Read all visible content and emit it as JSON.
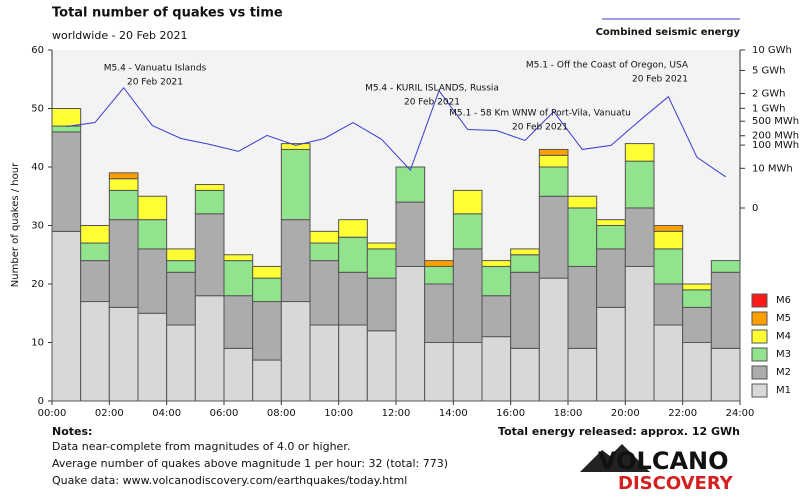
{
  "chart_data": {
    "type": "bar",
    "stacked": true,
    "title": "Total number of quakes vs time",
    "subtitle": "worldwide - 20 Feb 2021",
    "y_label": "Number of quakes / hour",
    "x": [
      0,
      1,
      2,
      3,
      4,
      5,
      6,
      7,
      8,
      9,
      10,
      11,
      12,
      13,
      14,
      15,
      16,
      17,
      18,
      19,
      20,
      21,
      22,
      23
    ],
    "xlim": [
      0,
      24
    ],
    "xticks": [
      {
        "value": 0,
        "label": "00:00"
      },
      {
        "value": 2,
        "label": "02:00"
      },
      {
        "value": 4,
        "label": "04:00"
      },
      {
        "value": 6,
        "label": "06:00"
      },
      {
        "value": 8,
        "label": "08:00"
      },
      {
        "value": 10,
        "label": "10:00"
      },
      {
        "value": 12,
        "label": "12:00"
      },
      {
        "value": 14,
        "label": "14:00"
      },
      {
        "value": 16,
        "label": "16:00"
      },
      {
        "value": 18,
        "label": "18:00"
      },
      {
        "value": 20,
        "label": "20:00"
      },
      {
        "value": 22,
        "label": "22:00"
      },
      {
        "value": 24,
        "label": "24:00"
      }
    ],
    "ylim": [
      0,
      60
    ],
    "yticks": [
      0,
      10,
      20,
      30,
      40,
      50,
      60
    ],
    "y2lim": [
      0,
      10000
    ],
    "y2scale": "power",
    "y2exponent": 0.2,
    "y2ticks": [
      {
        "value": 10000,
        "label": "10 GWh"
      },
      {
        "value": 5000,
        "label": "5 GWh"
      },
      {
        "value": 2000,
        "label": "2 GWh"
      },
      {
        "value": 1000,
        "label": "1 GWh"
      },
      {
        "value": 500,
        "label": "500 MWh"
      },
      {
        "value": 200,
        "label": "200 MWh"
      },
      {
        "value": 100,
        "label": "100 MWh"
      },
      {
        "value": 10,
        "label": "10 MWh"
      },
      {
        "value": 0,
        "label": "0"
      }
    ],
    "series": [
      {
        "name": "M1",
        "color": "#d8d8d8",
        "values": [
          29,
          17,
          16,
          15,
          13,
          18,
          9,
          7,
          17,
          13,
          13,
          12,
          23,
          10,
          10,
          11,
          9,
          21,
          9,
          16,
          23,
          13,
          10,
          9
        ]
      },
      {
        "name": "M2",
        "color": "#acacac",
        "values": [
          17,
          7,
          15,
          11,
          9,
          14,
          9,
          10,
          14,
          11,
          9,
          9,
          11,
          10,
          16,
          7,
          13,
          14,
          14,
          10,
          10,
          7,
          6,
          13
        ]
      },
      {
        "name": "M3",
        "color": "#92e38e",
        "values": [
          1,
          3,
          5,
          5,
          2,
          4,
          6,
          4,
          12,
          3,
          6,
          5,
          6,
          3,
          6,
          5,
          3,
          5,
          10,
          4,
          8,
          6,
          3,
          2
        ]
      },
      {
        "name": "M4",
        "color": "#ffff33",
        "values": [
          3,
          3,
          2,
          4,
          2,
          1,
          1,
          2,
          1,
          2,
          3,
          1,
          0,
          0,
          4,
          1,
          1,
          2,
          2,
          1,
          3,
          3,
          1,
          0
        ]
      },
      {
        "name": "M5",
        "color": "#ff9f00",
        "values": [
          0,
          0,
          1,
          0,
          0,
          0,
          0,
          0,
          0,
          0,
          0,
          0,
          0,
          1,
          0,
          0,
          0,
          1,
          0,
          0,
          0,
          1,
          0,
          0
        ]
      },
      {
        "name": "M6",
        "color": "#ff1a1a",
        "values": [
          0,
          0,
          0,
          0,
          0,
          0,
          0,
          0,
          0,
          0,
          0,
          0,
          0,
          0,
          0,
          0,
          0,
          0,
          0,
          0,
          0,
          0,
          0,
          0
        ]
      },
      {
        "name": "Combined seismic energy",
        "type": "line",
        "axis": "y2",
        "color": "#3b3bd0",
        "values": [
          365,
          463,
          2553,
          387,
          165,
          106,
          59,
          204,
          98,
          165,
          463,
          154,
          8,
          2252,
          303,
          284,
          143,
          845,
          70,
          98,
          519,
          1733,
          34,
          3
        ]
      }
    ],
    "annotations": [
      {
        "lines": [
          "M5.4 - Vanuatu Islands",
          "20 Feb 2021"
        ]
      },
      {
        "lines": [
          "M5.4 - KURIL ISLANDS, Russia",
          "20 Feb 2021"
        ]
      },
      {
        "lines": [
          "M5.1 - 58 Km WNW of Port-Vila, Vanuatu",
          "20 Feb 2021"
        ]
      },
      {
        "lines": [
          "M5.1 - Off the Coast of Oregon, USA",
          "20 Feb 2021"
        ]
      }
    ],
    "notes": {
      "title": "Notes:",
      "lines": [
        "Data near-complete from magnitudes of 4.0 or higher.",
        "Average number of quakes above magnitude 1 per hour: 32 (total: 773)",
        "Quake data: www.volcanodiscovery.com/earthquakes/today.html"
      ]
    },
    "total_energy": "Total energy released: approx. 12 GWh",
    "logo": [
      "VOLCANO",
      "DISCOVERY"
    ]
  }
}
